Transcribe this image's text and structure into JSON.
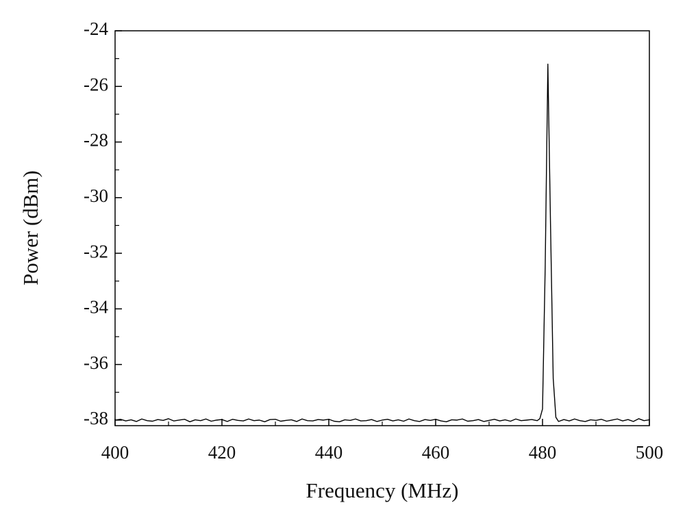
{
  "chart_data": {
    "type": "line",
    "xlabel": "Frequency (MHz)",
    "ylabel": "Power (dBm)",
    "x": [
      400,
      401,
      402,
      403,
      404,
      405,
      406,
      407,
      408,
      409,
      410,
      411,
      412,
      413,
      414,
      415,
      416,
      417,
      418,
      419,
      420,
      421,
      422,
      423,
      424,
      425,
      426,
      427,
      428,
      429,
      430,
      431,
      432,
      433,
      434,
      435,
      436,
      437,
      438,
      439,
      440,
      441,
      442,
      443,
      444,
      445,
      446,
      447,
      448,
      449,
      450,
      451,
      452,
      453,
      454,
      455,
      456,
      457,
      458,
      459,
      460,
      461,
      462,
      463,
      464,
      465,
      466,
      467,
      468,
      469,
      470,
      471,
      472,
      473,
      474,
      475,
      476,
      477,
      478,
      479,
      479.5,
      480,
      480.5,
      481,
      481.5,
      482,
      482.5,
      483,
      484,
      485,
      486,
      487,
      488,
      489,
      490,
      491,
      492,
      493,
      494,
      495,
      496,
      497,
      498,
      499,
      500
    ],
    "series": [
      {
        "name": "Power",
        "color": "#000000",
        "values": [
          -38.0,
          -37.97,
          -38.03,
          -37.99,
          -38.05,
          -37.96,
          -38.02,
          -38.04,
          -37.98,
          -38.01,
          -37.95,
          -38.03,
          -38.0,
          -37.97,
          -38.06,
          -37.99,
          -38.02,
          -37.96,
          -38.04,
          -38.0,
          -37.98,
          -38.05,
          -37.97,
          -38.01,
          -38.03,
          -37.96,
          -38.02,
          -38.0,
          -38.06,
          -37.98,
          -37.97,
          -38.04,
          -38.01,
          -37.99,
          -38.05,
          -37.96,
          -38.02,
          -38.03,
          -37.98,
          -38.0,
          -37.97,
          -38.04,
          -38.06,
          -37.99,
          -38.01,
          -37.96,
          -38.03,
          -38.02,
          -37.98,
          -38.05,
          -38.0,
          -37.97,
          -38.03,
          -37.99,
          -38.04,
          -37.96,
          -38.02,
          -38.05,
          -37.98,
          -38.01,
          -37.97,
          -38.03,
          -38.06,
          -37.99,
          -38.0,
          -37.96,
          -38.04,
          -38.02,
          -37.98,
          -38.05,
          -38.01,
          -37.97,
          -38.03,
          -37.99,
          -38.04,
          -37.96,
          -38.02,
          -38.0,
          -37.98,
          -38.02,
          -37.95,
          -37.6,
          -32.5,
          -25.2,
          -31.0,
          -36.5,
          -37.9,
          -38.05,
          -37.98,
          -38.03,
          -37.96,
          -38.02,
          -38.05,
          -37.99,
          -38.01,
          -37.97,
          -38.04,
          -38.0,
          -37.96,
          -38.03,
          -37.98,
          -38.05,
          -37.95,
          -38.02,
          -37.99
        ]
      }
    ],
    "xlim": [
      400,
      500
    ],
    "ylim": [
      -38.2,
      -24
    ],
    "xticks": [
      400,
      420,
      440,
      460,
      480,
      500
    ],
    "yticks": [
      -38,
      -36,
      -34,
      -32,
      -30,
      -28,
      -26,
      -24
    ],
    "xminorticks": [
      410,
      430,
      450,
      470,
      490
    ],
    "yminorticks": [
      -37,
      -35,
      -33,
      -31,
      -29,
      -27,
      -25
    ]
  }
}
